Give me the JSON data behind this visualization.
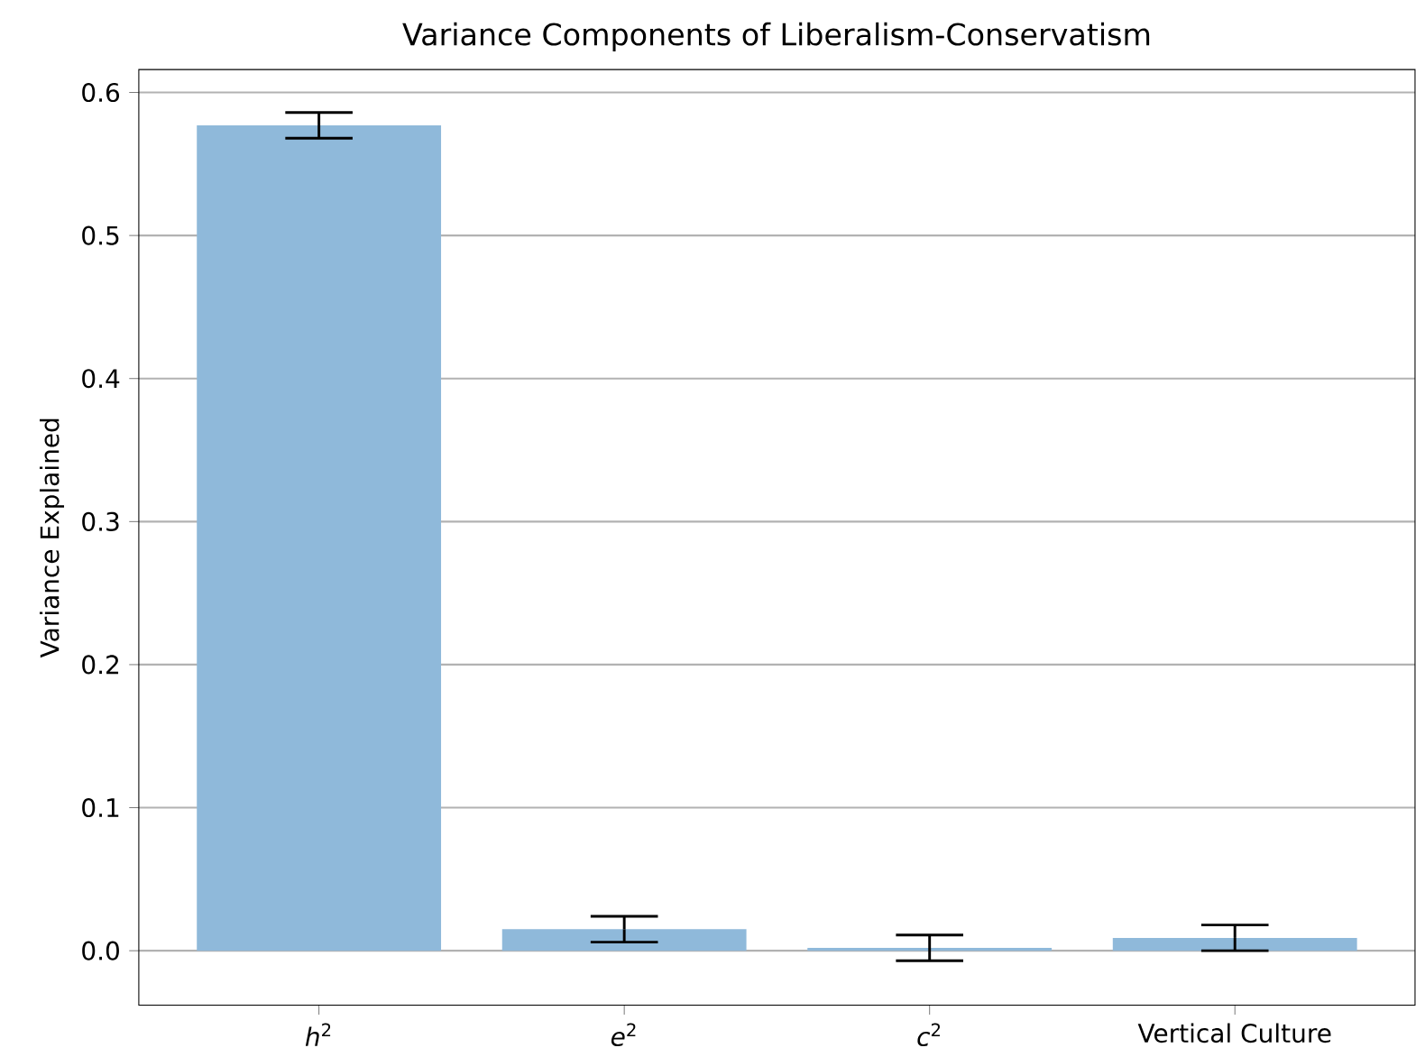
{
  "chart_data": {
    "type": "bar",
    "title": "Variance Components of Liberalism-Conservatism",
    "ylabel": "Variance Explained",
    "categories": [
      "*h*$^{2}$",
      "*e*$^{2}$",
      "*c*$^{2}$",
      "Vertical Culture"
    ],
    "values": [
      0.577,
      0.015,
      0.002,
      0.009
    ],
    "errors": [
      0.009,
      0.009,
      0.009,
      0.009
    ],
    "color": "#8fb9da",
    "ylim": [
      -0.038,
      0.616
    ],
    "yticks": [
      {
        "value": 0,
        "label": "0.0"
      },
      {
        "value": 0.1,
        "label": "0.1"
      },
      {
        "value": 0.2,
        "label": "0.2"
      },
      {
        "value": 0.3,
        "label": "0.3"
      },
      {
        "value": 0.4,
        "label": "0.4"
      },
      {
        "value": 0.5,
        "label": "0.5"
      },
      {
        "value": 0.6,
        "label": "0.6"
      }
    ],
    "grid": "y"
  }
}
